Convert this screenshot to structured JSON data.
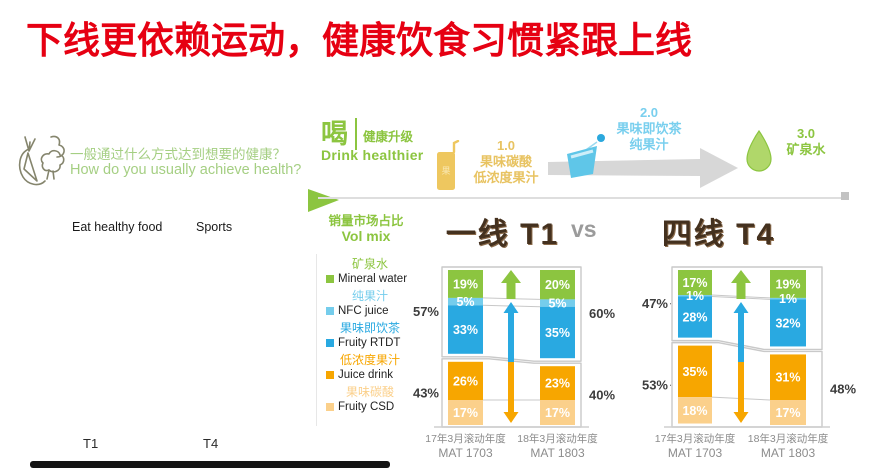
{
  "slide": {
    "title": "下线更依赖运动，健康饮食习惯紧跟上线",
    "title_color": "#e60012"
  },
  "health_question": {
    "question_zh": "一般通过什么方式达到想要的健康？",
    "question_en": "How do you usually achieve health?",
    "question_color": "#a5cf83",
    "answers": [
      "Eat healthy food",
      "Sports"
    ],
    "tier_labels": [
      "T1",
      "T4"
    ]
  },
  "drink_upgrade": {
    "headline_zh": "喝",
    "headline_tag_zh": "健康升级",
    "headline_en": "Drink healthier",
    "accent_color": "#8cc540",
    "stages": [
      {
        "level": "1.0",
        "line1": "果味碳酸",
        "line2": "低浓度果汁",
        "color": "#e8c361"
      },
      {
        "level": "2.0",
        "line1": "果味即饮茶",
        "line2": "纯果汁",
        "color": "#79cfee"
      },
      {
        "level": "3.0",
        "line1": "矿泉水",
        "line2": "",
        "color": "#8cc540"
      }
    ]
  },
  "vol_mix": {
    "label_zh": "销量市场占比",
    "label_en": "Vol mix",
    "label_color": "#8cc540",
    "legend": [
      {
        "zh": "矿泉水",
        "en": "Mineral water",
        "color": "#8cc540"
      },
      {
        "zh": "纯果汁",
        "en": "NFC juice",
        "color": "#75cdec"
      },
      {
        "zh": "果味即饮茶",
        "en": "Fruity RTDT",
        "color": "#29a9e1"
      },
      {
        "zh": "低浓度果汁",
        "en": "Juice drink",
        "color": "#f7a600"
      },
      {
        "zh": "果味碳酸",
        "en": "Fruity CSD",
        "color": "#fbd08b"
      }
    ],
    "comparison": {
      "left": "一线 T1",
      "vs": "vs",
      "right": "四线 T4"
    }
  },
  "chart_data": [
    {
      "type": "bar",
      "stacked": true,
      "name": "一线 T1 Vol mix",
      "unit": "%",
      "categories": [
        [
          "17年3月滚动年度",
          "MAT 1703"
        ],
        [
          "18年3月滚动年度",
          "MAT 1803"
        ]
      ],
      "series": [
        {
          "name": "Mineral water",
          "color": "#8cc540",
          "values": [
            19,
            20
          ]
        },
        {
          "name": "NFC juice",
          "color": "#75cdec",
          "values": [
            5,
            5
          ]
        },
        {
          "name": "Fruity RTDT",
          "color": "#29a9e1",
          "values": [
            33,
            35
          ]
        },
        {
          "name": "Juice drink",
          "color": "#f7a600",
          "values": [
            26,
            23
          ]
        },
        {
          "name": "Fruity CSD",
          "color": "#fbd08b",
          "values": [
            17,
            17
          ]
        }
      ],
      "group_totals_left": [
        "57%",
        "43%"
      ],
      "group_totals_right": [
        "60%",
        "40%"
      ]
    },
    {
      "type": "bar",
      "stacked": true,
      "name": "四线 T4 Vol mix",
      "unit": "%",
      "categories": [
        [
          "17年3月滚动年度",
          "MAT 1703"
        ],
        [
          "18年3月滚动年度",
          "MAT 1803"
        ]
      ],
      "series": [
        {
          "name": "Mineral water",
          "color": "#8cc540",
          "values": [
            17,
            19
          ]
        },
        {
          "name": "NFC juice",
          "color": "#75cdec",
          "values": [
            1,
            1
          ]
        },
        {
          "name": "Fruity RTDT",
          "color": "#29a9e1",
          "values": [
            28,
            32
          ]
        },
        {
          "name": "Juice drink",
          "color": "#f7a600",
          "values": [
            35,
            31
          ]
        },
        {
          "name": "Fruity CSD",
          "color": "#fbd08b",
          "values": [
            18,
            17
          ]
        }
      ],
      "group_totals_left": [
        "47%",
        "53%"
      ],
      "group_totals_right": [
        null,
        "48%"
      ]
    }
  ]
}
